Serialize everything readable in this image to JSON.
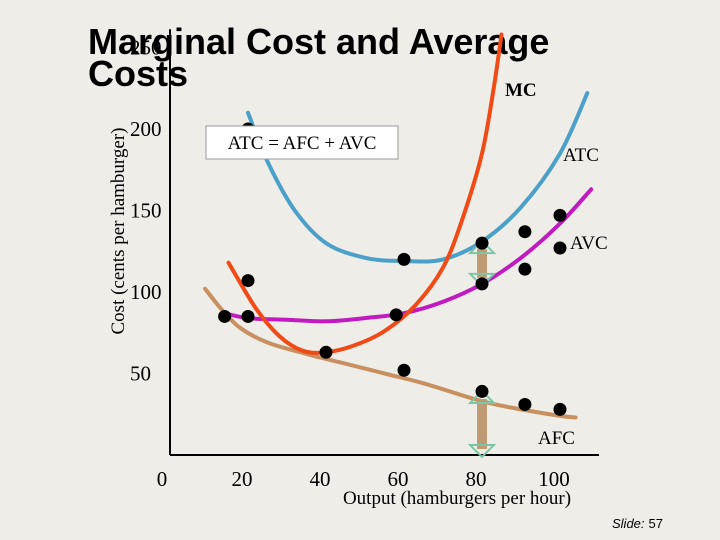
{
  "title": "Marginal Cost and Average\nCosts",
  "slide": {
    "label": "Slide:",
    "number": "57"
  },
  "equation_label": "ATC = AFC + AVC",
  "chart_data": {
    "type": "line",
    "title": "Marginal Cost and Average Costs",
    "xlabel": "Output (hamburgers per hour)",
    "ylabel": "Cost (cents per hamburger)",
    "xlim": [
      0,
      110
    ],
    "ylim": [
      0,
      260
    ],
    "x_ticks": [
      0,
      20,
      40,
      60,
      80,
      100
    ],
    "y_ticks": [
      50,
      100,
      150,
      200,
      250
    ],
    "grid": false,
    "colors": {
      "MC": "#f04a16",
      "ATC": "#4aa0c8",
      "AVC": "#c01ac0",
      "AFC": "#c89060",
      "marker": "#000000",
      "arrow": "#c09a72"
    },
    "series": [
      {
        "name": "MC",
        "curve": [
          [
            15,
            118
          ],
          [
            22,
            90
          ],
          [
            28,
            73
          ],
          [
            34,
            64
          ],
          [
            40,
            63
          ],
          [
            47,
            67
          ],
          [
            55,
            76
          ],
          [
            63,
            92
          ],
          [
            70,
            115
          ],
          [
            75,
            145
          ],
          [
            80,
            185
          ],
          [
            83,
            225
          ],
          [
            85,
            258
          ]
        ]
      },
      {
        "name": "ATC",
        "curve": [
          [
            20,
            210
          ],
          [
            25,
            180
          ],
          [
            32,
            150
          ],
          [
            40,
            130
          ],
          [
            50,
            121
          ],
          [
            60,
            119
          ],
          [
            70,
            120
          ],
          [
            80,
            131
          ],
          [
            90,
            152
          ],
          [
            100,
            185
          ],
          [
            107,
            222
          ]
        ],
        "points": [
          [
            20,
            200
          ],
          [
            60,
            120
          ],
          [
            80,
            130
          ],
          [
            91,
            137
          ],
          [
            100,
            147
          ]
        ]
      },
      {
        "name": "AVC",
        "curve": [
          [
            14,
            87
          ],
          [
            20,
            84
          ],
          [
            30,
            83
          ],
          [
            40,
            82
          ],
          [
            50,
            84
          ],
          [
            60,
            87
          ],
          [
            70,
            94
          ],
          [
            80,
            105
          ],
          [
            90,
            121
          ],
          [
            100,
            142
          ],
          [
            108,
            163
          ]
        ],
        "points": [
          [
            14,
            85
          ],
          [
            20,
            85
          ],
          [
            58,
            86
          ],
          [
            80,
            105
          ],
          [
            91,
            114
          ],
          [
            100,
            127
          ]
        ]
      },
      {
        "name": "AFC",
        "curve": [
          [
            9,
            102
          ],
          [
            13,
            90
          ],
          [
            18,
            78
          ],
          [
            25,
            69
          ],
          [
            35,
            62
          ],
          [
            45,
            56
          ],
          [
            55,
            50
          ],
          [
            65,
            44
          ],
          [
            80,
            33
          ],
          [
            90,
            28
          ],
          [
            100,
            24
          ],
          [
            104,
            23
          ]
        ],
        "points": [
          [
            20,
            107
          ],
          [
            40,
            63
          ],
          [
            60,
            52
          ],
          [
            80,
            39
          ],
          [
            91,
            31
          ],
          [
            100,
            28
          ]
        ]
      }
    ],
    "annotations": [
      {
        "text": "ATC = AFC + AVC"
      },
      {
        "text": "MC"
      },
      {
        "text": "ATC"
      },
      {
        "text": "AVC"
      },
      {
        "text": "AFC"
      }
    ],
    "brackets": [
      {
        "x": 80,
        "from": 105,
        "to": 130
      },
      {
        "x": 80,
        "from": 0,
        "to": 38
      }
    ]
  }
}
